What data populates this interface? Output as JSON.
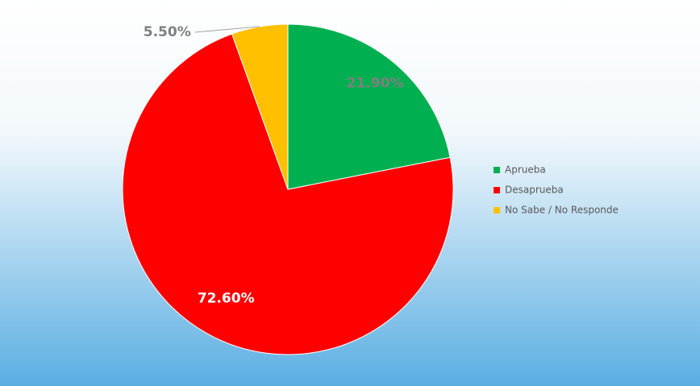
{
  "chart_data": {
    "type": "pie",
    "categories": [
      "Aprueba",
      "Desaprueba",
      "No Sabe / No Responde"
    ],
    "values": [
      21.9,
      72.6,
      5.5
    ],
    "value_labels": [
      "21.90%",
      "72.60%",
      "5.50%"
    ],
    "colors": [
      "#00b050",
      "#ff0000",
      "#ffc000"
    ],
    "legend": "right"
  }
}
